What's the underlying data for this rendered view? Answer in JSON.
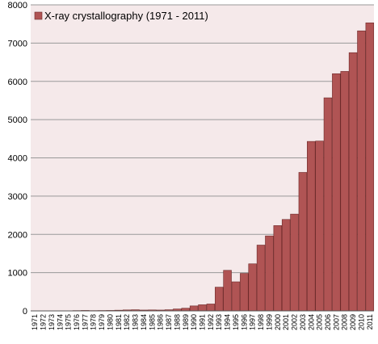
{
  "chart_data": {
    "type": "bar",
    "title": "",
    "xlabel": "",
    "ylabel": "",
    "ylim": [
      0,
      8000
    ],
    "yticks": [
      0,
      1000,
      2000,
      3000,
      4000,
      5000,
      6000,
      7000,
      8000
    ],
    "grid": "horizontal",
    "legend_position": "top-left",
    "categories": [
      "1971",
      "1972",
      "1973",
      "1974",
      "1975",
      "1976",
      "1977",
      "1978",
      "1979",
      "1980",
      "1981",
      "1982",
      "1983",
      "1984",
      "1985",
      "1986",
      "1987",
      "1988",
      "1989",
      "1990",
      "1991",
      "1992",
      "1993",
      "1994",
      "1995",
      "1996",
      "1997",
      "1998",
      "1999",
      "2000",
      "2001",
      "2002",
      "2003",
      "2004",
      "2005",
      "2006",
      "2007",
      "2008",
      "2009",
      "2010",
      "2011"
    ],
    "series": [
      {
        "name": "X-ray crystallography (1971 - 2011)",
        "color": "#b05454",
        "values": [
          1,
          1,
          1,
          2,
          4,
          8,
          12,
          8,
          10,
          12,
          18,
          25,
          30,
          22,
          25,
          22,
          30,
          50,
          70,
          130,
          160,
          180,
          620,
          1060,
          760,
          980,
          1230,
          1720,
          1960,
          2230,
          2390,
          2530,
          3620,
          4430,
          4440,
          5570,
          6200,
          6260,
          6750,
          7320,
          7530
        ]
      }
    ]
  },
  "colors": {
    "plot_background": "#f5e9ea",
    "bar_fill": "#b05454",
    "bar_stroke": "#6e2a2a",
    "grid": "#999999"
  }
}
